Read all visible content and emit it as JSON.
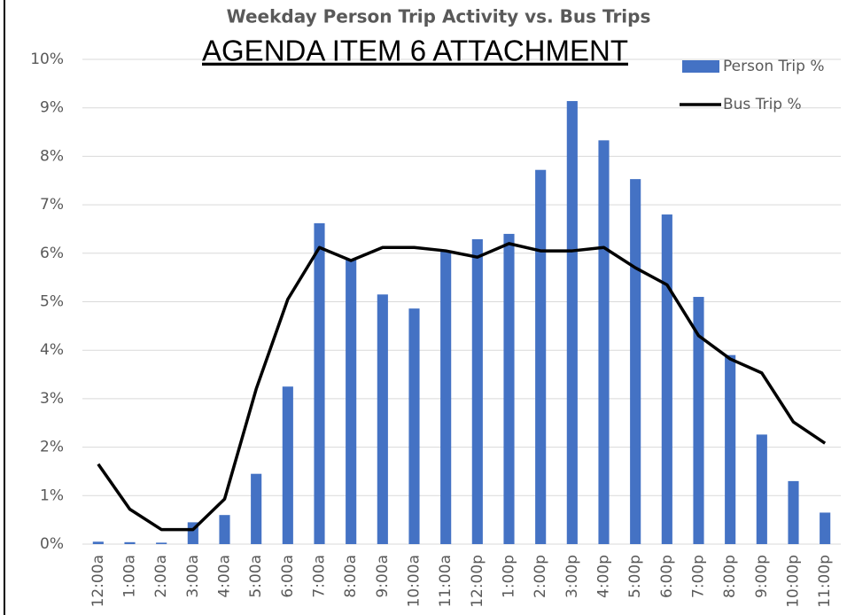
{
  "chart_data": {
    "type": "bar_line",
    "title": "Weekday Person Trip Activity vs. Bus Trips",
    "annotation": "AGENDA ITEM 6 ATTACHMENT",
    "categories": [
      "12:00a",
      "1:00a",
      "2:00a",
      "3:00a",
      "4:00a",
      "5:00a",
      "6:00a",
      "7:00a",
      "8:00a",
      "9:00a",
      "10:00a",
      "11:00a",
      "12:00p",
      "1:00p",
      "2:00p",
      "3:00p",
      "4:00p",
      "5:00p",
      "6:00p",
      "7:00p",
      "8:00p",
      "9:00p",
      "10:00p",
      "11:00p"
    ],
    "series": [
      {
        "name": "Person Trip %",
        "type": "bar",
        "color": "#4472c4",
        "values": [
          0.05,
          0.04,
          0.03,
          0.45,
          0.6,
          1.45,
          3.25,
          6.62,
          5.87,
          5.15,
          4.86,
          6.05,
          6.29,
          6.4,
          7.72,
          9.14,
          8.33,
          7.53,
          6.8,
          5.1,
          3.9,
          2.26,
          1.3,
          0.65
        ]
      },
      {
        "name": "Bus Trip %",
        "type": "line",
        "color": "#000000",
        "values": [
          1.65,
          0.72,
          0.3,
          0.3,
          0.93,
          3.2,
          5.05,
          6.12,
          5.85,
          6.12,
          6.12,
          6.05,
          5.92,
          6.2,
          6.05,
          6.05,
          6.12,
          5.7,
          5.35,
          4.3,
          3.82,
          3.53,
          2.52,
          2.08
        ]
      }
    ],
    "ylim": [
      0,
      10
    ],
    "yticks": [
      {
        "value": 0,
        "label": "0%"
      },
      {
        "value": 1,
        "label": "1%"
      },
      {
        "value": 2,
        "label": "2%"
      },
      {
        "value": 3,
        "label": "3%"
      },
      {
        "value": 4,
        "label": "4%"
      },
      {
        "value": 5,
        "label": "5%"
      },
      {
        "value": 6,
        "label": "6%"
      },
      {
        "value": 7,
        "label": "7%"
      },
      {
        "value": 8,
        "label": "8%"
      },
      {
        "value": 9,
        "label": "9%"
      },
      {
        "value": 10,
        "label": "10%"
      }
    ],
    "grid": true,
    "legend": "top-right"
  }
}
